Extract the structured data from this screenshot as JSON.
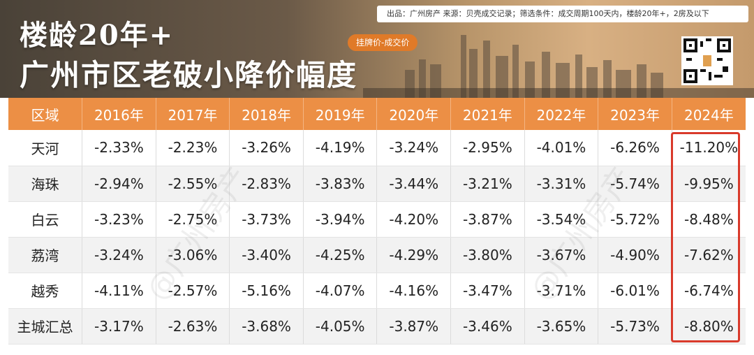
{
  "header": {
    "title_line1": "楼龄20年+",
    "title_line2": "广州市区老破小降价幅度",
    "source": "出品：广州房产  来源：贝壳成交记录；筛选条件：成交周期100天内，楼龄20年+，2房及以下",
    "pill": "挂牌价-成交价"
  },
  "watermark": "@广州房产",
  "colors": {
    "header_orange": "#ec8f45",
    "pill_orange": "#e07a28",
    "highlight_red": "#d93a2b"
  },
  "chart_data": {
    "type": "table",
    "columns": [
      "区域",
      "2016年",
      "2017年",
      "2018年",
      "2019年",
      "2020年",
      "2021年",
      "2022年",
      "2023年",
      "2024年"
    ],
    "rows": [
      {
        "region": "天河",
        "values": [
          "-2.33%",
          "-2.23%",
          "-3.26%",
          "-4.19%",
          "-3.24%",
          "-2.95%",
          "-4.01%",
          "-6.26%",
          "-11.20%"
        ]
      },
      {
        "region": "海珠",
        "values": [
          "-2.94%",
          "-2.55%",
          "-2.83%",
          "-3.83%",
          "-3.44%",
          "-3.21%",
          "-3.31%",
          "-5.74%",
          "-9.95%"
        ]
      },
      {
        "region": "白云",
        "values": [
          "-3.23%",
          "-2.75%",
          "-3.73%",
          "-3.94%",
          "-4.20%",
          "-3.87%",
          "-3.54%",
          "-5.72%",
          "-8.48%"
        ]
      },
      {
        "region": "荔湾",
        "values": [
          "-3.24%",
          "-3.06%",
          "-3.40%",
          "-4.25%",
          "-4.29%",
          "-3.80%",
          "-3.67%",
          "-4.90%",
          "-7.62%"
        ]
      },
      {
        "region": "越秀",
        "values": [
          "-4.11%",
          "-2.57%",
          "-5.16%",
          "-4.07%",
          "-4.16%",
          "-3.47%",
          "-3.71%",
          "-6.01%",
          "-6.74%"
        ]
      },
      {
        "region": "主城汇总",
        "values": [
          "-3.17%",
          "-2.63%",
          "-3.68%",
          "-4.05%",
          "-3.87%",
          "-3.46%",
          "-3.65%",
          "-5.73%",
          "-8.80%"
        ]
      }
    ],
    "highlighted_column": "2024年"
  }
}
